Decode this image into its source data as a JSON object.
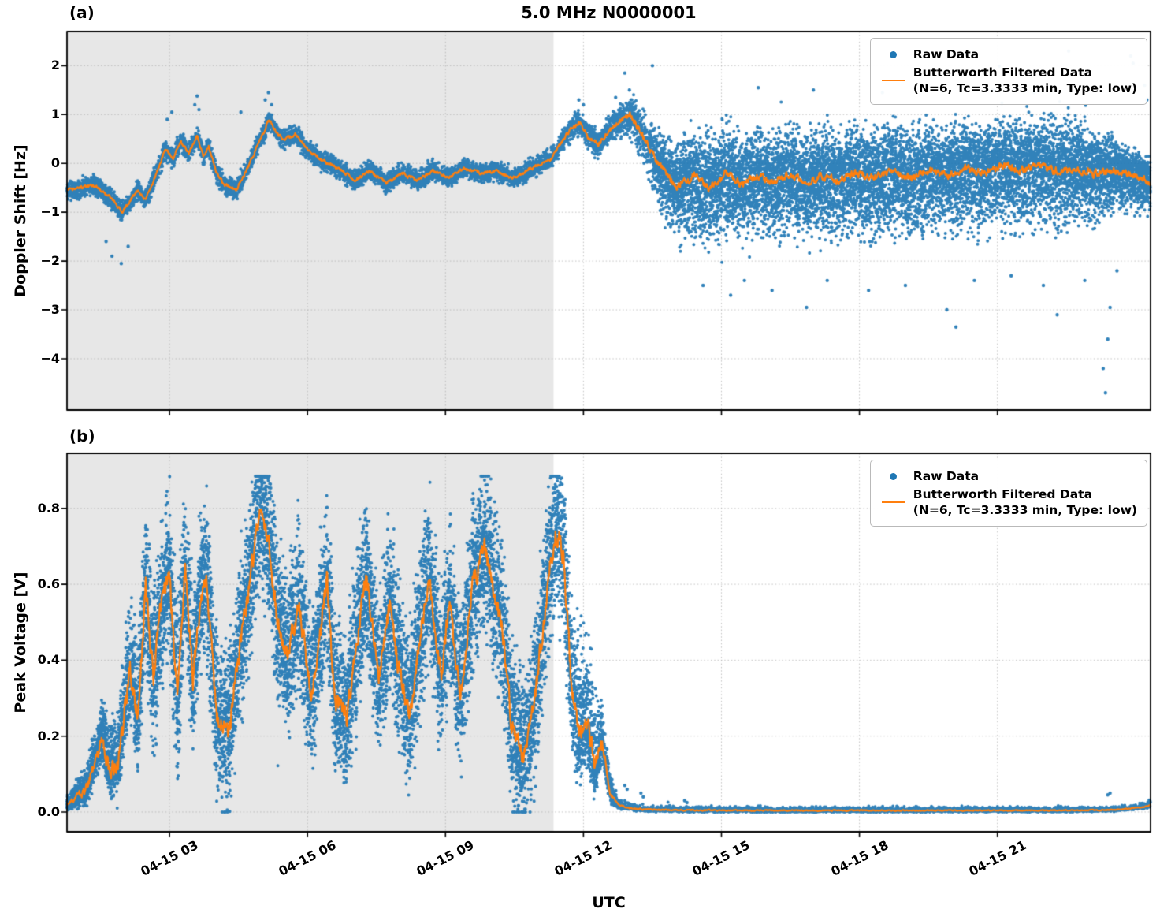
{
  "figure": {
    "title": "5.0 MHz N0000001",
    "xlabel": "UTC"
  },
  "legend": {
    "raw_label": "Raw Data",
    "filtered_label": "Butterworth Filtered Data",
    "filtered_params": "(N=6, Tc=3.3333 min, Type: low)"
  },
  "colors": {
    "raw_scatter": "#1f77b4",
    "filtered_line": "#ff7f0e",
    "twilight_shade": "#e7e7e7",
    "grid": "#a8a8a8",
    "axis": "#000000"
  },
  "chart_data": [
    {
      "panel_label": "(a)",
      "type": "scatter",
      "ylabel": "Doppler Shift [Hz]",
      "ylim": [
        -5.05,
        2.7
      ],
      "x_unit_note": "hours after 04-15 00:00 UTC",
      "xlim_hours": [
        0.77,
        24.33
      ],
      "shaded_region_hours": [
        0.77,
        11.35
      ],
      "show_xtick_labels": false,
      "yticks": [
        {
          "v": 2,
          "label": "2"
        },
        {
          "v": 1,
          "label": "1"
        },
        {
          "v": 0,
          "label": "0"
        },
        {
          "v": -1,
          "label": "−1"
        },
        {
          "v": -2,
          "label": "−2"
        },
        {
          "v": -3,
          "label": "−3"
        },
        {
          "v": -4,
          "label": "−4"
        }
      ],
      "xticks": [
        {
          "hour": 3,
          "label": "04-15 03"
        },
        {
          "hour": 6,
          "label": "04-15 06"
        },
        {
          "hour": 9,
          "label": "04-15 09"
        },
        {
          "hour": 12,
          "label": "04-15 12"
        },
        {
          "hour": 15,
          "label": "04-15 15"
        },
        {
          "hour": 18,
          "label": "04-15 18"
        },
        {
          "hour": 21,
          "label": "04-15 21"
        }
      ],
      "series": [
        {
          "name": "Raw Data",
          "type": "scatter"
        },
        {
          "name": "Butterworth Filtered Data (N=6, Tc=3.3333 min, Type: low)",
          "type": "line"
        }
      ],
      "filtered_points": [
        [
          0.77,
          -0.55
        ],
        [
          1.37,
          -0.45
        ],
        [
          1.71,
          -0.7
        ],
        [
          1.97,
          -1.0
        ],
        [
          2.31,
          -0.55
        ],
        [
          2.48,
          -0.75
        ],
        [
          2.74,
          -0.15
        ],
        [
          2.91,
          0.3
        ],
        [
          3.08,
          0.1
        ],
        [
          3.25,
          0.45
        ],
        [
          3.42,
          0.2
        ],
        [
          3.6,
          0.55
        ],
        [
          3.73,
          0.15
        ],
        [
          3.85,
          0.35
        ],
        [
          4.02,
          -0.2
        ],
        [
          4.2,
          -0.45
        ],
        [
          4.45,
          -0.55
        ],
        [
          4.7,
          -0.1
        ],
        [
          4.95,
          0.45
        ],
        [
          5.17,
          0.9
        ],
        [
          5.35,
          0.6
        ],
        [
          5.48,
          0.5
        ],
        [
          5.73,
          0.6
        ],
        [
          5.99,
          0.3
        ],
        [
          6.33,
          0.05
        ],
        [
          6.68,
          -0.1
        ],
        [
          7.02,
          -0.35
        ],
        [
          7.36,
          -0.15
        ],
        [
          7.71,
          -0.4
        ],
        [
          8.05,
          -0.2
        ],
        [
          8.39,
          -0.35
        ],
        [
          8.73,
          -0.15
        ],
        [
          9.08,
          -0.3
        ],
        [
          9.42,
          -0.1
        ],
        [
          9.76,
          -0.2
        ],
        [
          10.1,
          -0.15
        ],
        [
          10.44,
          -0.3
        ],
        [
          10.7,
          -0.2
        ],
        [
          10.96,
          -0.05
        ],
        [
          11.3,
          0.1
        ],
        [
          11.64,
          0.6
        ],
        [
          11.9,
          0.85
        ],
        [
          12.1,
          0.55
        ],
        [
          12.33,
          0.4
        ],
        [
          12.68,
          0.8
        ],
        [
          13.02,
          1.0
        ],
        [
          13.3,
          0.55
        ],
        [
          13.62,
          0.0
        ],
        [
          14.05,
          -0.5
        ],
        [
          14.4,
          -0.25
        ],
        [
          14.75,
          -0.5
        ],
        [
          15.1,
          -0.2
        ],
        [
          15.45,
          -0.45
        ],
        [
          15.8,
          -0.25
        ],
        [
          16.15,
          -0.4
        ],
        [
          16.5,
          -0.2
        ],
        [
          16.85,
          -0.4
        ],
        [
          17.2,
          -0.25
        ],
        [
          17.55,
          -0.35
        ],
        [
          17.9,
          -0.2
        ],
        [
          18.3,
          -0.3
        ],
        [
          18.7,
          -0.15
        ],
        [
          19.1,
          -0.3
        ],
        [
          19.5,
          -0.15
        ],
        [
          19.9,
          -0.25
        ],
        [
          20.3,
          -0.1
        ],
        [
          20.7,
          -0.2
        ],
        [
          21.1,
          -0.05
        ],
        [
          21.5,
          -0.15
        ],
        [
          21.9,
          -0.05
        ],
        [
          22.3,
          -0.15
        ],
        [
          22.7,
          -0.1
        ],
        [
          23.1,
          -0.2
        ],
        [
          23.5,
          -0.15
        ],
        [
          23.9,
          -0.25
        ],
        [
          24.33,
          -0.4
        ]
      ],
      "scatter_spread": [
        [
          0.77,
          0.28,
          0.28
        ],
        [
          11.35,
          0.28,
          0.28
        ],
        [
          12.6,
          0.4,
          0.4
        ],
        [
          13.4,
          0.9,
          0.7
        ],
        [
          14.2,
          1.6,
          1.3
        ],
        [
          22.8,
          1.6,
          1.3
        ],
        [
          23.6,
          1.1,
          0.9
        ],
        [
          24.33,
          0.8,
          0.6
        ]
      ],
      "scatter_density": [
        [
          0.77,
          2
        ],
        [
          13.4,
          2
        ],
        [
          13.6,
          4
        ],
        [
          24.33,
          4
        ]
      ],
      "line_noise": [
        [
          0.77,
          0.06
        ],
        [
          11.3,
          0.06
        ],
        [
          13.6,
          0.13
        ],
        [
          24.33,
          0.14
        ]
      ],
      "value_clamp": [
        -5.0,
        2.65
      ],
      "outliers": [
        [
          1.62,
          -1.6
        ],
        [
          1.75,
          -1.9
        ],
        [
          1.95,
          -2.05
        ],
        [
          2.1,
          -1.7
        ],
        [
          2.95,
          0.9
        ],
        [
          3.05,
          1.05
        ],
        [
          3.55,
          1.2
        ],
        [
          3.6,
          1.38
        ],
        [
          3.64,
          1.1
        ],
        [
          4.55,
          1.05
        ],
        [
          5.08,
          1.3
        ],
        [
          5.15,
          1.45
        ],
        [
          5.22,
          1.2
        ],
        [
          11.9,
          1.3
        ],
        [
          12.0,
          1.2
        ],
        [
          12.7,
          1.35
        ],
        [
          13.0,
          1.5
        ],
        [
          13.05,
          1.3
        ],
        [
          13.5,
          2.0
        ],
        [
          12.9,
          1.85
        ],
        [
          14.6,
          -2.5
        ],
        [
          15.2,
          -2.7
        ],
        [
          15.5,
          -2.4
        ],
        [
          16.1,
          -2.6
        ],
        [
          16.85,
          -2.95
        ],
        [
          17.3,
          -2.4
        ],
        [
          18.2,
          -2.6
        ],
        [
          19.0,
          -2.5
        ],
        [
          19.9,
          -3.0
        ],
        [
          20.1,
          -3.35
        ],
        [
          20.5,
          -2.4
        ],
        [
          21.3,
          -2.3
        ],
        [
          22.0,
          -2.5
        ],
        [
          22.3,
          -3.1
        ],
        [
          22.9,
          -2.4
        ],
        [
          23.3,
          -4.2
        ],
        [
          23.35,
          -4.7
        ],
        [
          23.4,
          -3.6
        ],
        [
          23.45,
          -2.95
        ],
        [
          23.6,
          -2.2
        ],
        [
          22.55,
          2.3
        ],
        [
          23.9,
          2.2
        ],
        [
          23.95,
          2.05
        ],
        [
          15.8,
          1.55
        ],
        [
          17.0,
          1.5
        ],
        [
          18.5,
          1.45
        ],
        [
          20.9,
          1.5
        ],
        [
          21.8,
          1.45
        ],
        [
          24.2,
          1.6
        ],
        [
          24.25,
          1.3
        ]
      ]
    },
    {
      "panel_label": "(b)",
      "type": "scatter",
      "ylabel": "Peak Voltage [V]",
      "ylim": [
        -0.052,
        0.945
      ],
      "x_unit_note": "hours after 04-15 00:00 UTC",
      "xlim_hours": [
        0.77,
        24.33
      ],
      "shaded_region_hours": [
        0.77,
        11.35
      ],
      "show_xtick_labels": true,
      "yticks": [
        {
          "v": 0.0,
          "label": "0.0"
        },
        {
          "v": 0.2,
          "label": "0.2"
        },
        {
          "v": 0.4,
          "label": "0.4"
        },
        {
          "v": 0.6,
          "label": "0.6"
        },
        {
          "v": 0.8,
          "label": "0.8"
        }
      ],
      "xticks": [
        {
          "hour": 3,
          "label": "04-15 03"
        },
        {
          "hour": 6,
          "label": "04-15 06"
        },
        {
          "hour": 9,
          "label": "04-15 09"
        },
        {
          "hour": 12,
          "label": "04-15 12"
        },
        {
          "hour": 15,
          "label": "04-15 15"
        },
        {
          "hour": 18,
          "label": "04-15 18"
        },
        {
          "hour": 21,
          "label": "04-15 21"
        }
      ],
      "series": [
        {
          "name": "Raw Data",
          "type": "scatter"
        },
        {
          "name": "Butterworth Filtered Data (N=6, Tc=3.3333 min, Type: low)",
          "type": "line"
        }
      ],
      "filtered_points": [
        [
          0.77,
          0.02
        ],
        [
          1.0,
          0.04
        ],
        [
          1.2,
          0.06
        ],
        [
          1.54,
          0.2
        ],
        [
          1.7,
          0.1
        ],
        [
          1.88,
          0.13
        ],
        [
          2.14,
          0.38
        ],
        [
          2.31,
          0.25
        ],
        [
          2.48,
          0.6
        ],
        [
          2.65,
          0.35
        ],
        [
          2.82,
          0.55
        ],
        [
          3.0,
          0.62
        ],
        [
          3.17,
          0.3
        ],
        [
          3.34,
          0.64
        ],
        [
          3.51,
          0.35
        ],
        [
          3.68,
          0.58
        ],
        [
          3.8,
          0.62
        ],
        [
          4.02,
          0.25
        ],
        [
          4.28,
          0.2
        ],
        [
          4.54,
          0.45
        ],
        [
          4.8,
          0.65
        ],
        [
          4.97,
          0.8
        ],
        [
          5.14,
          0.72
        ],
        [
          5.34,
          0.5
        ],
        [
          5.57,
          0.42
        ],
        [
          5.82,
          0.55
        ],
        [
          6.08,
          0.3
        ],
        [
          6.25,
          0.45
        ],
        [
          6.42,
          0.62
        ],
        [
          6.59,
          0.3
        ],
        [
          6.85,
          0.25
        ],
        [
          7.11,
          0.48
        ],
        [
          7.28,
          0.62
        ],
        [
          7.54,
          0.35
        ],
        [
          7.79,
          0.55
        ],
        [
          7.96,
          0.4
        ],
        [
          8.22,
          0.25
        ],
        [
          8.48,
          0.5
        ],
        [
          8.65,
          0.62
        ],
        [
          8.91,
          0.35
        ],
        [
          9.08,
          0.55
        ],
        [
          9.33,
          0.3
        ],
        [
          9.59,
          0.6
        ],
        [
          9.85,
          0.7
        ],
        [
          10.02,
          0.6
        ],
        [
          10.27,
          0.45
        ],
        [
          10.44,
          0.22
        ],
        [
          10.7,
          0.15
        ],
        [
          10.96,
          0.3
        ],
        [
          11.22,
          0.6
        ],
        [
          11.39,
          0.75
        ],
        [
          11.56,
          0.68
        ],
        [
          11.73,
          0.35
        ],
        [
          11.9,
          0.2
        ],
        [
          12.07,
          0.25
        ],
        [
          12.24,
          0.12
        ],
        [
          12.41,
          0.18
        ],
        [
          12.58,
          0.05
        ],
        [
          12.75,
          0.02
        ],
        [
          13.0,
          0.01
        ],
        [
          13.5,
          0.006
        ],
        [
          14.0,
          0.005
        ],
        [
          16.0,
          0.004
        ],
        [
          18.0,
          0.004
        ],
        [
          20.0,
          0.004
        ],
        [
          22.0,
          0.004
        ],
        [
          23.3,
          0.005
        ],
        [
          23.8,
          0.008
        ],
        [
          24.1,
          0.012
        ],
        [
          24.33,
          0.018
        ]
      ],
      "scatter_spread": [
        [
          0.77,
          0.02,
          0.03
        ],
        [
          1.3,
          0.06,
          0.1
        ],
        [
          1.9,
          0.12,
          0.2
        ],
        [
          2.5,
          0.28,
          0.3
        ],
        [
          11.6,
          0.28,
          0.3
        ],
        [
          12.1,
          0.15,
          0.35
        ],
        [
          12.45,
          0.06,
          0.12
        ],
        [
          12.75,
          0.012,
          0.02
        ],
        [
          13.2,
          0.008,
          0.015
        ],
        [
          24.0,
          0.006,
          0.012
        ],
        [
          24.33,
          0.01,
          0.02
        ]
      ],
      "scatter_density": [
        [
          0.77,
          4
        ],
        [
          12.5,
          4
        ],
        [
          12.9,
          1
        ],
        [
          24.33,
          1
        ]
      ],
      "line_noise": [
        [
          0.77,
          0.012
        ],
        [
          2.0,
          0.05
        ],
        [
          12.2,
          0.05
        ],
        [
          12.7,
          0.003
        ],
        [
          24.33,
          0.002
        ]
      ],
      "value_clamp": [
        0.0,
        0.885
      ],
      "outliers": [
        [
          12.9,
          0.07
        ],
        [
          12.95,
          0.06
        ],
        [
          13.25,
          0.05
        ],
        [
          13.3,
          0.04
        ],
        [
          14.2,
          0.03
        ],
        [
          14.25,
          0.025
        ],
        [
          23.4,
          0.045
        ],
        [
          23.45,
          0.05
        ]
      ]
    }
  ]
}
